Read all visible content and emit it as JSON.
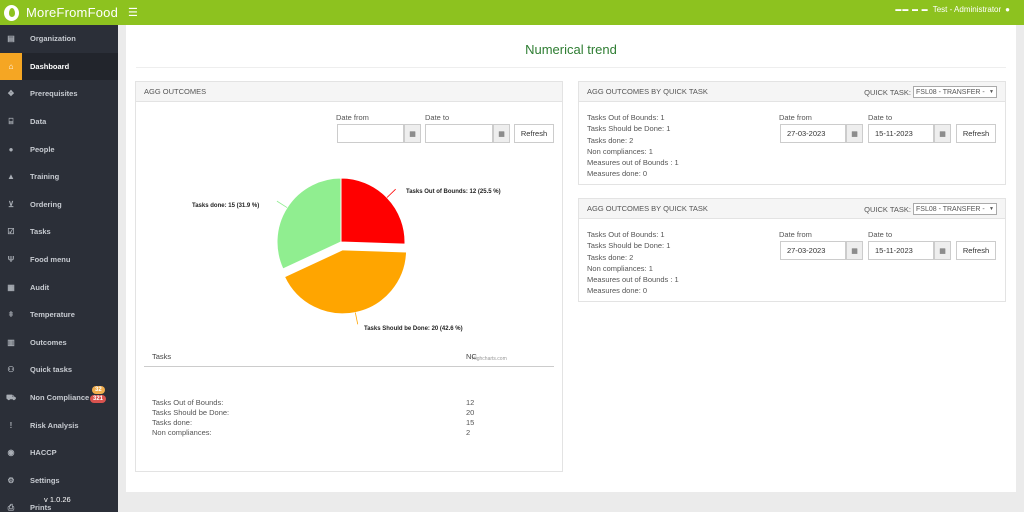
{
  "app": {
    "brand": "MoreFromFood",
    "flags": "▬▬ ▬ ▬",
    "user": "Test - Administrator",
    "version": "v 1.0.26"
  },
  "sidebar": {
    "items": [
      {
        "label": "Organization",
        "icon": "building-icon"
      },
      {
        "label": "Dashboard",
        "icon": "home-icon"
      },
      {
        "label": "Prerequisites",
        "icon": "cubes-icon"
      },
      {
        "label": "Data",
        "icon": "bank-icon"
      },
      {
        "label": "People",
        "icon": "person-icon"
      },
      {
        "label": "Training",
        "icon": "graduation-cap-icon"
      },
      {
        "label": "Ordering",
        "icon": "cart-icon"
      },
      {
        "label": "Tasks",
        "icon": "checkbox-icon"
      },
      {
        "label": "Food menu",
        "icon": "cutlery-icon"
      },
      {
        "label": "Audit",
        "icon": "calendar-check-icon"
      },
      {
        "label": "Temperature",
        "icon": "thermometer-icon"
      },
      {
        "label": "Outcomes",
        "icon": "table-icon"
      },
      {
        "label": "Quick tasks",
        "icon": "users-icon"
      },
      {
        "label": "Non Compliance",
        "icon": "truck-icon"
      },
      {
        "label": "Risk Analysis",
        "icon": "exclamation-icon"
      },
      {
        "label": "HACCP",
        "icon": "compass-icon"
      },
      {
        "label": "Settings",
        "icon": "gears-icon"
      },
      {
        "label": "Prints",
        "icon": "print-icon"
      }
    ],
    "badges": {
      "nc_warning": "32",
      "nc_danger": "321"
    }
  },
  "page": {
    "title": "Numerical trend"
  },
  "agg": {
    "title": "AGG OUTCOMES",
    "date_from_label": "Date from",
    "date_to_label": "Date to",
    "date_from_value": "",
    "date_to_value": "",
    "refresh_label": "Refresh",
    "credits": "Highcharts.com",
    "table": {
      "col_tasks": "Tasks",
      "col_nc": "NC",
      "rows": [
        {
          "label": "Tasks Out of Bounds:",
          "value": "12"
        },
        {
          "label": "Tasks Should be Done:",
          "value": "20"
        },
        {
          "label": "Tasks done:",
          "value": "15"
        },
        {
          "label": "Non compliances:",
          "value": "2"
        }
      ]
    }
  },
  "chart_data": {
    "type": "pie",
    "slices": [
      {
        "label": "Tasks Out of Bounds",
        "value": 12,
        "percent": 25.5,
        "color": "#ff0000",
        "display": "Tasks Out of Bounds: 12 (25.5 %)"
      },
      {
        "label": "Tasks Should be Done",
        "value": 20,
        "percent": 42.6,
        "color": "#ffa500",
        "display": "Tasks Should be Done: 20 (42.6 %)"
      },
      {
        "label": "Tasks done",
        "value": 15,
        "percent": 31.9,
        "color": "#90ee90",
        "display": "Tasks done: 15 (31.9 %)"
      }
    ],
    "sliced": "Tasks Should be Done"
  },
  "quick_panels": [
    {
      "title": "AGG OUTCOMES BY QUICK TASK",
      "quick_task_label": "QUICK TASK:",
      "quick_task_value": "FSL08 - TRANSFER -",
      "date_from_label": "Date from",
      "date_to_label": "Date to",
      "date_from_value": "27-03-2023",
      "date_to_value": "15-11-2023",
      "refresh_label": "Refresh",
      "stats": [
        "Tasks Out of Bounds: 1",
        "Tasks Should be Done: 1",
        "Tasks done: 2",
        "Non compliances: 1",
        "Measures out of Bounds : 1",
        "Measures done: 0"
      ]
    },
    {
      "title": "AGG OUTCOMES BY QUICK TASK",
      "quick_task_label": "QUICK TASK:",
      "quick_task_value": "FSL08 - TRANSFER -",
      "date_from_label": "Date from",
      "date_to_label": "Date to",
      "date_from_value": "27-03-2023",
      "date_to_value": "15-11-2023",
      "refresh_label": "Refresh",
      "stats": [
        "Tasks Out of Bounds: 1",
        "Tasks Should be Done: 1",
        "Tasks done: 2",
        "Non compliances: 1",
        "Measures out of Bounds : 1",
        "Measures done: 0"
      ]
    }
  ]
}
